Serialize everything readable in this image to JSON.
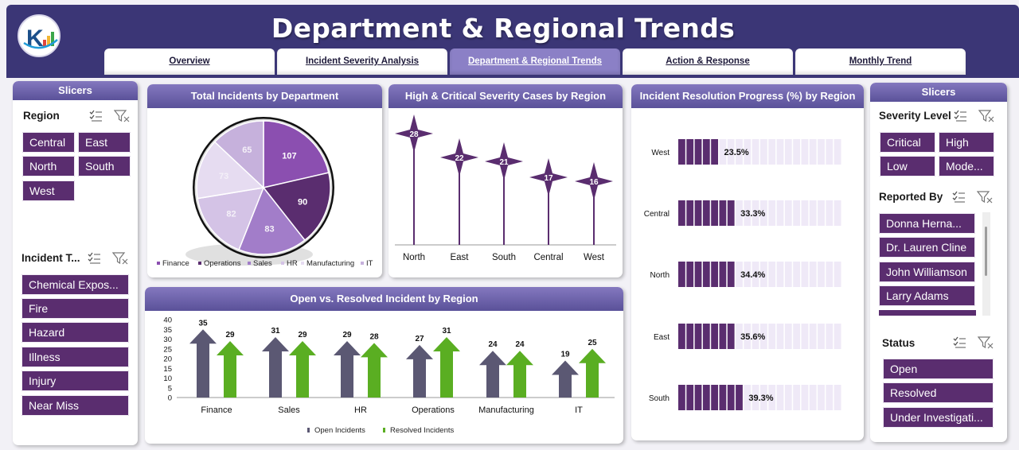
{
  "header": {
    "title": "Department & Regional Trends",
    "tabs": [
      {
        "label": "Overview",
        "active": false
      },
      {
        "label": "Incident Severity Analysis",
        "active": false
      },
      {
        "label": "Department & Regional Trends",
        "active": true
      },
      {
        "label": "Action & Response",
        "active": false
      },
      {
        "label": "Monthly Trend",
        "active": false
      }
    ]
  },
  "left_slicers": {
    "title": "Slicers",
    "region": {
      "title": "Region",
      "items": [
        "Central",
        "East",
        "North",
        "South",
        "West"
      ]
    },
    "incident_type": {
      "title": "Incident T...",
      "items": [
        "Chemical Expos...",
        "Fire",
        "Hazard",
        "Illness",
        "Injury",
        "Near Miss"
      ]
    }
  },
  "right_slicers": {
    "title": "Slicers",
    "severity": {
      "title": "Severity Level",
      "items": [
        "Critical",
        "High",
        "Low",
        "Mode..."
      ]
    },
    "reported_by": {
      "title": "Reported By",
      "items": [
        "Donna Herna...",
        "Dr. Lauren Cline",
        "John Williamson",
        "Larry Adams"
      ]
    },
    "status": {
      "title": "Status",
      "items": [
        "Open",
        "Resolved",
        "Under Investigati..."
      ]
    }
  },
  "chart_data": [
    {
      "type": "pie",
      "title": "Total Incidents by Department",
      "categories": [
        "Finance",
        "Operations",
        "Sales",
        "HR",
        "Manufacturing",
        "IT"
      ],
      "values": [
        107,
        90,
        83,
        82,
        73,
        65
      ],
      "colors": [
        "#8b4fb0",
        "#5a2d6f",
        "#a27dc9",
        "#d4c3e6",
        "#e6dcf1",
        "#c6b1dc"
      ],
      "legend": "bottom"
    },
    {
      "type": "bar",
      "title": "High & Critical Severity Cases by Region",
      "categories": [
        "North",
        "East",
        "South",
        "Central",
        "West"
      ],
      "values": [
        28,
        22,
        21,
        17,
        16
      ],
      "color": "#5a2d6f"
    },
    {
      "type": "bar",
      "title": "Incident Resolution Progress (%) by Region",
      "categories": [
        "West",
        "Central",
        "North",
        "East",
        "South"
      ],
      "values": [
        23.5,
        33.3,
        34.4,
        35.6,
        39.3
      ],
      "labels": [
        "23.5%",
        "33.3%",
        "34.4%",
        "35.6%",
        "39.3%"
      ],
      "max": 100,
      "fill_color": "#5a2d6f",
      "track_color": "#efe9f7"
    },
    {
      "type": "bar",
      "title": "Open vs. Resolved Incident by Region",
      "categories": [
        "Finance",
        "Sales",
        "HR",
        "Operations",
        "Manufacturing",
        "IT"
      ],
      "series": [
        {
          "name": "Open Incidents",
          "values": [
            35,
            31,
            29,
            27,
            24,
            19
          ],
          "color": "#5b5873"
        },
        {
          "name": "Resolved Incidents",
          "values": [
            29,
            29,
            28,
            31,
            24,
            25
          ],
          "color": "#5aae22"
        }
      ],
      "ylim": [
        0,
        40
      ],
      "yticks": [
        "0",
        "5",
        "10",
        "15",
        "20",
        "25",
        "30",
        "35",
        "40"
      ],
      "legend": "bottom"
    }
  ]
}
